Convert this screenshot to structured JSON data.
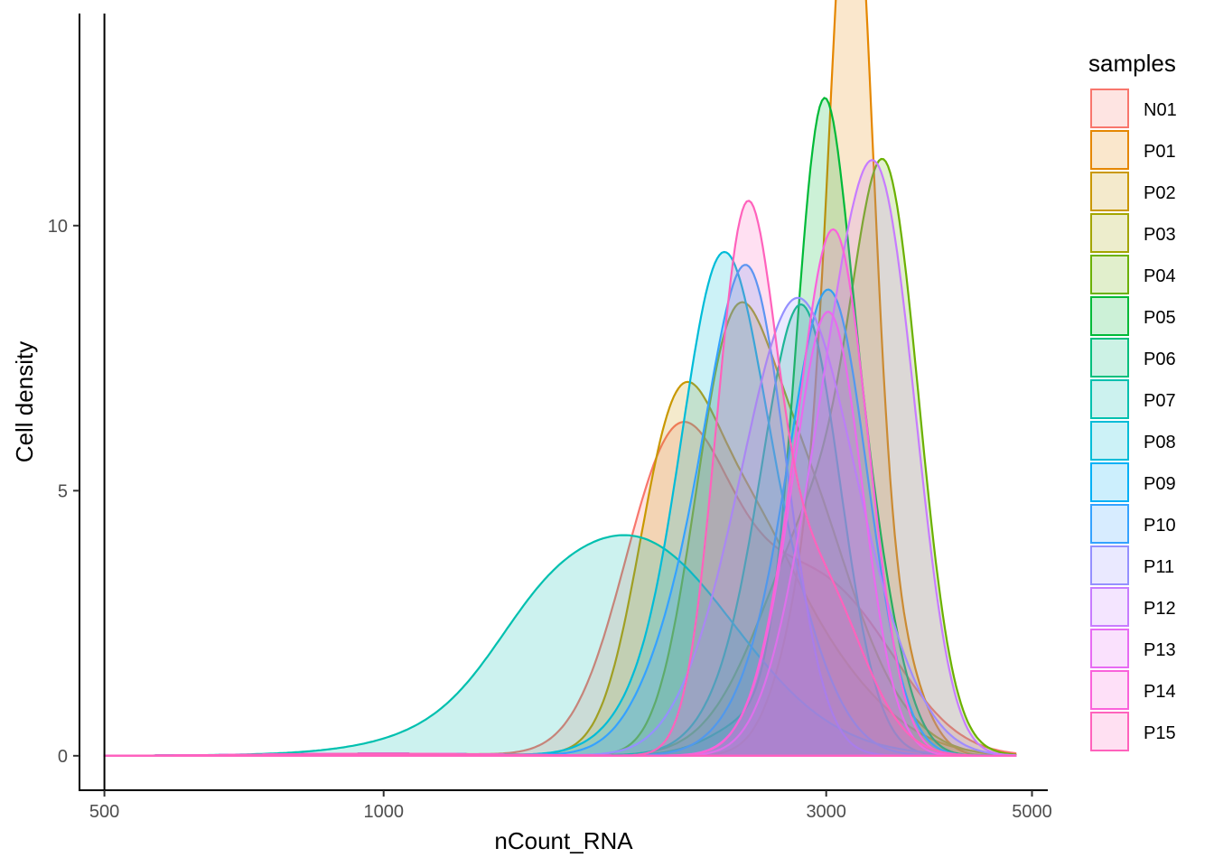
{
  "chart_data": {
    "type": "area",
    "subtype": "density",
    "title": "",
    "xlabel": "nCount_RNA",
    "ylabel": "Cell density",
    "x_scale": "log10",
    "xlim": [
      470,
      5200
    ],
    "ylim": [
      -0.65,
      14.0
    ],
    "x_ticks": [
      500,
      1000,
      3000,
      5000
    ],
    "y_ticks": [
      0,
      5,
      10
    ],
    "vline": 500,
    "grid": false,
    "legend": {
      "title": "samples",
      "position": "right"
    },
    "series": [
      {
        "name": "N01",
        "color": "#F8766D",
        "peaks": [
          [
            2050,
            5.2,
            0.055
          ],
          [
            2700,
            3.0,
            0.08
          ],
          [
            3300,
            1.0,
            0.06
          ]
        ]
      },
      {
        "name": "P01",
        "color": "#E58700",
        "peaks": [
          [
            3200,
            12.6,
            0.022
          ],
          [
            3050,
            5.0,
            0.04
          ],
          [
            3550,
            1.5,
            0.03
          ]
        ]
      },
      {
        "name": "P02",
        "color": "#C99800",
        "peaks": [
          [
            2050,
            5.0,
            0.04
          ],
          [
            2700,
            2.3,
            0.08
          ],
          [
            2400,
            2.5,
            0.05
          ]
        ]
      },
      {
        "name": "P03",
        "color": "#A3A500",
        "peaks": [
          [
            2350,
            6.4,
            0.04
          ],
          [
            2750,
            4.0,
            0.05
          ],
          [
            3100,
            1.5,
            0.06
          ]
        ]
      },
      {
        "name": "P04",
        "color": "#6BB100",
        "peaks": [
          [
            3500,
            8.5,
            0.035
          ],
          [
            3050,
            4.0,
            0.06
          ],
          [
            2700,
            1.0,
            0.06
          ]
        ]
      },
      {
        "name": "P05",
        "color": "#00BA38",
        "peaks": [
          [
            2950,
            9.6,
            0.028
          ],
          [
            3250,
            4.5,
            0.035
          ],
          [
            2600,
            0.8,
            0.05
          ]
        ]
      },
      {
        "name": "P06",
        "color": "#00BF7D",
        "peaks": [
          [
            2850,
            7.0,
            0.04
          ],
          [
            2600,
            2.0,
            0.05
          ]
        ]
      },
      {
        "name": "P07",
        "color": "#00C0AF",
        "peaks": [
          [
            1850,
            4.1,
            0.11
          ],
          [
            1450,
            0.45,
            0.05
          ],
          [
            1100,
            0.08,
            0.08
          ]
        ]
      },
      {
        "name": "P08",
        "color": "#00BCD8",
        "peaks": [
          [
            2300,
            6.6,
            0.04
          ],
          [
            2600,
            3.4,
            0.05
          ],
          [
            2050,
            1.5,
            0.05
          ]
        ]
      },
      {
        "name": "P09",
        "color": "#00B0F6",
        "peaks": [
          [
            3050,
            7.4,
            0.04
          ],
          [
            2750,
            2.0,
            0.05
          ]
        ]
      },
      {
        "name": "P10",
        "color": "#35A2FF",
        "peaks": [
          [
            2500,
            7.5,
            0.04
          ],
          [
            2200,
            3.0,
            0.05
          ]
        ]
      },
      {
        "name": "P11",
        "color": "#9590FF",
        "peaks": [
          [
            2800,
            7.1,
            0.05
          ],
          [
            2400,
            2.0,
            0.05
          ],
          [
            3300,
            2.0,
            0.05
          ]
        ]
      },
      {
        "name": "P12",
        "color": "#C77CFF",
        "peaks": [
          [
            3250,
            6.6,
            0.04
          ],
          [
            3550,
            5.5,
            0.035
          ],
          [
            2900,
            2.5,
            0.04
          ]
        ]
      },
      {
        "name": "P13",
        "color": "#E76BF3",
        "peaks": [
          [
            3050,
            7.0,
            0.035
          ],
          [
            2800,
            2.0,
            0.04
          ]
        ]
      },
      {
        "name": "P14",
        "color": "#FA62DB",
        "peaks": [
          [
            3100,
            7.8,
            0.035
          ],
          [
            2850,
            3.0,
            0.04
          ]
        ]
      },
      {
        "name": "P15",
        "color": "#FF62BC",
        "peaks": [
          [
            2450,
            9.2,
            0.032
          ],
          [
            2900,
            3.5,
            0.05
          ]
        ]
      }
    ]
  }
}
